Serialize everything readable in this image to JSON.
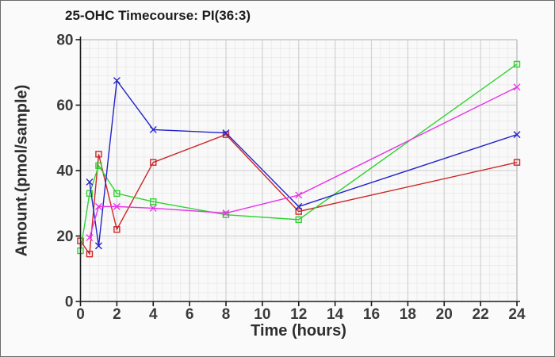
{
  "window": {
    "title": "25-OHC Timecourse: PI(36:3)"
  },
  "chart_data": {
    "type": "line",
    "title": "25-OHC Timecourse: PI(36:3)",
    "xlabel": "Time (hours)",
    "ylabel": "Amount.(pmol/sample)",
    "xlim": [
      0,
      24
    ],
    "ylim": [
      0,
      80
    ],
    "x_ticks": [
      0,
      2,
      4,
      6,
      8,
      10,
      12,
      14,
      16,
      18,
      20,
      22,
      24
    ],
    "y_ticks": [
      0,
      20,
      40,
      60,
      80
    ],
    "grid": true,
    "legend": "none",
    "timepoints_hours": [
      0,
      0.5,
      1,
      2,
      4,
      8,
      12,
      24
    ],
    "series": [
      {
        "name": "red-squares",
        "color": "#cc2626",
        "marker": "square",
        "x": [
          0,
          0.5,
          1,
          2,
          4,
          8,
          12,
          24
        ],
        "y": [
          18.5,
          14.5,
          45,
          22,
          42.5,
          51,
          27.5,
          42.5
        ]
      },
      {
        "name": "green-squares",
        "color": "#2fd32f",
        "marker": "square",
        "x": [
          0,
          0.5,
          1,
          2,
          4,
          8,
          12,
          24
        ],
        "y": [
          15.5,
          33,
          41.5,
          33,
          30.5,
          26.5,
          25,
          72.5
        ]
      },
      {
        "name": "blue-x",
        "color": "#2222c8",
        "marker": "x",
        "x": [
          0.5,
          1,
          2,
          4,
          8,
          12,
          24
        ],
        "y": [
          36.5,
          17,
          67.5,
          52.5,
          51.5,
          29,
          51
        ]
      },
      {
        "name": "magenta-x",
        "color": "#e832e8",
        "marker": "x",
        "x": [
          0.5,
          1,
          2,
          4,
          8,
          12,
          24
        ],
        "y": [
          19.5,
          29,
          29,
          28.5,
          27,
          32.5,
          65.5
        ]
      }
    ],
    "colors": {
      "axis": "#1a1a1a",
      "major_grid": "#d4d4d4",
      "minor_grid": "#ececec",
      "frame": "#c6c6c6",
      "plot_bg": "#f9f9f9",
      "tick_text": "#3a3a3a"
    }
  }
}
